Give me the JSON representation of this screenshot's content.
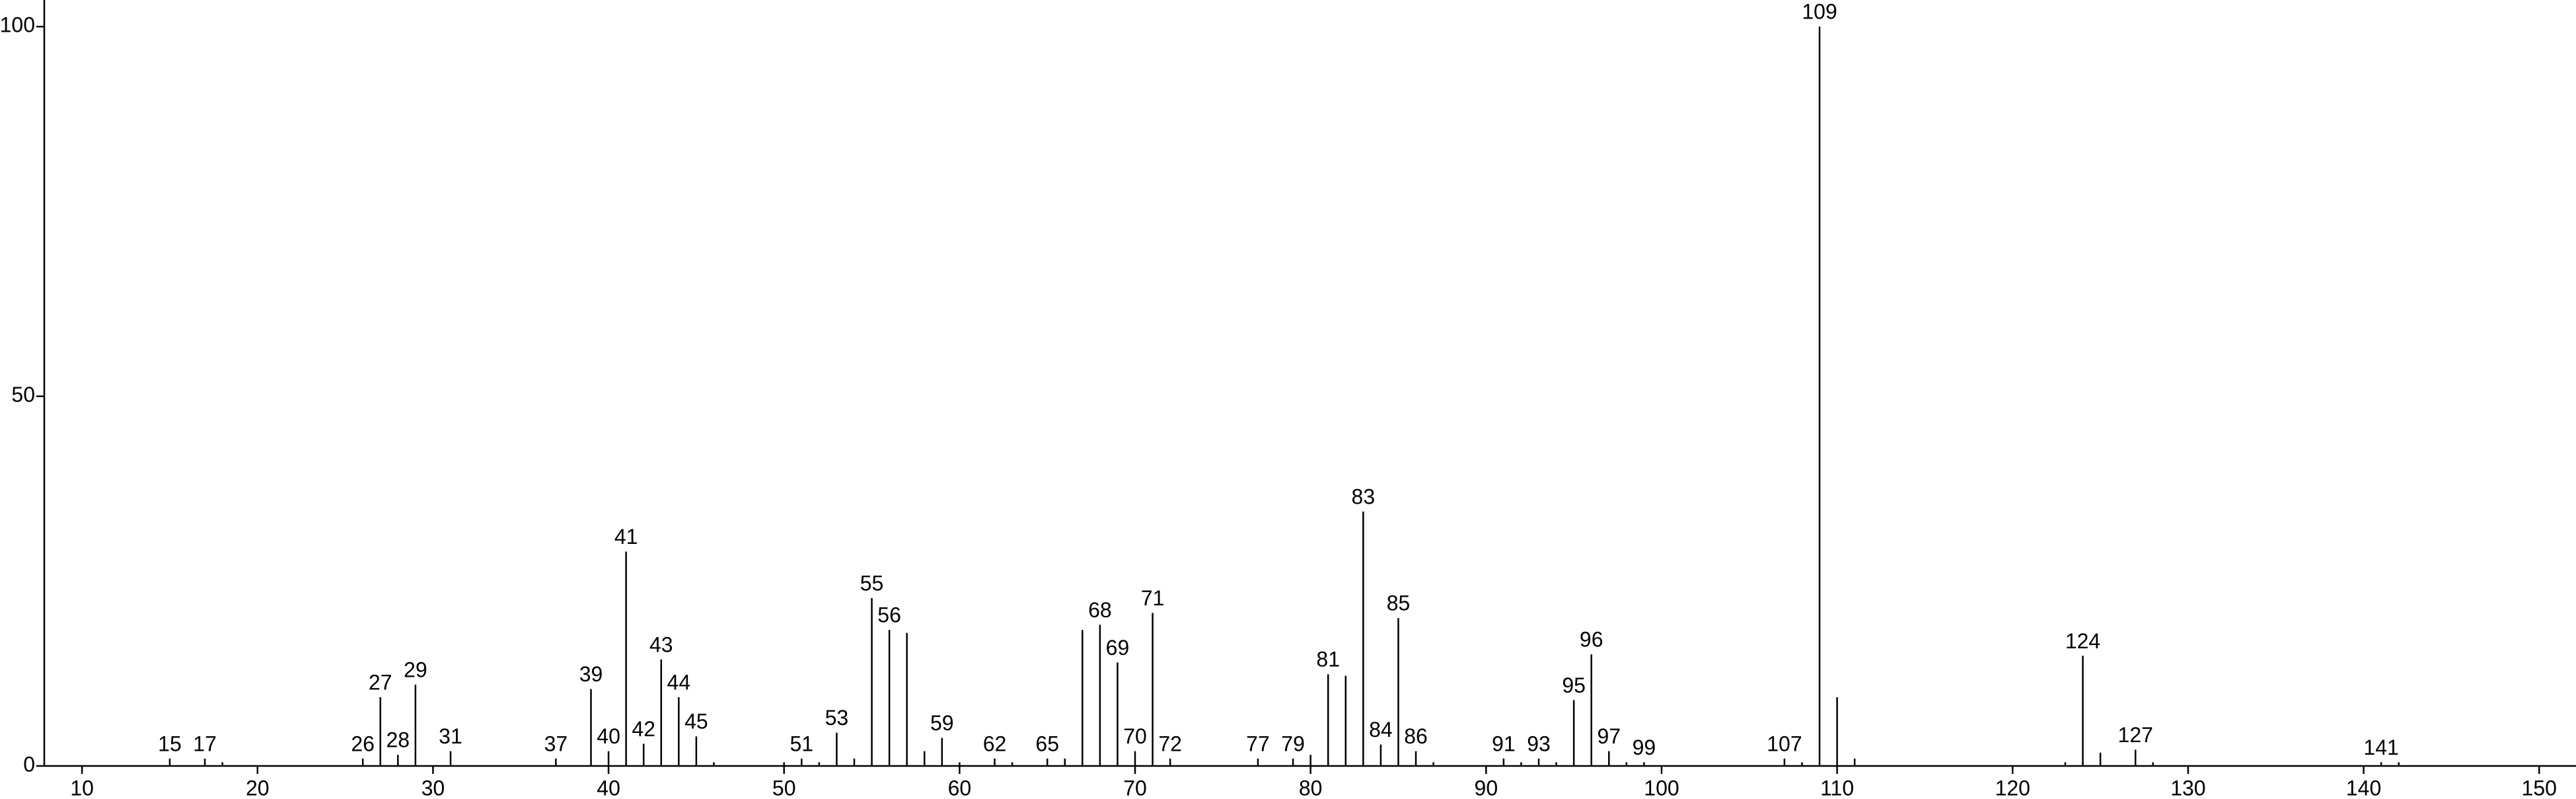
{
  "chart_data": {
    "type": "stick",
    "x": [
      15,
      17,
      18,
      26,
      27,
      28,
      29,
      31,
      37,
      39,
      40,
      41,
      42,
      43,
      44,
      45,
      46,
      50,
      51,
      52,
      53,
      54,
      55,
      56,
      57,
      58,
      59,
      60,
      62,
      63,
      65,
      66,
      67,
      68,
      69,
      70,
      71,
      72,
      77,
      79,
      80,
      81,
      82,
      83,
      84,
      85,
      86,
      87,
      91,
      92,
      93,
      94,
      95,
      96,
      97,
      98,
      99,
      107,
      108,
      109,
      110,
      111,
      123,
      124,
      125,
      127,
      128,
      141,
      142
    ],
    "values": [
      1,
      1,
      0.5,
      1,
      9.3,
      1.5,
      11,
      2,
      1,
      10.4,
      2,
      29,
      3,
      14.4,
      9.3,
      4,
      0.5,
      0.5,
      1,
      0.5,
      4.5,
      1,
      22.7,
      18.4,
      18,
      2,
      3.8,
      0.5,
      1,
      0.5,
      1,
      1,
      18.4,
      19.1,
      14,
      2,
      20.7,
      1,
      1,
      1,
      1.5,
      12.4,
      12.2,
      34.4,
      2.9,
      20,
      2,
      0.5,
      1,
      0.5,
      1,
      0.5,
      8.9,
      15.1,
      2,
      0.5,
      0.5,
      1,
      0.5,
      100,
      9.3,
      1,
      0.5,
      14.9,
      1.8,
      2.2,
      0.5,
      0.5,
      0.5
    ],
    "peak_labels": [
      15,
      17,
      null,
      26,
      27,
      28,
      29,
      31,
      37,
      39,
      40,
      41,
      42,
      43,
      44,
      45,
      null,
      null,
      51,
      null,
      53,
      null,
      55,
      56,
      null,
      null,
      59,
      null,
      62,
      null,
      65,
      null,
      null,
      68,
      69,
      70,
      71,
      72,
      77,
      79,
      null,
      81,
      null,
      83,
      84,
      85,
      86,
      null,
      91,
      null,
      93,
      null,
      95,
      96,
      97,
      null,
      99,
      107,
      null,
      109,
      null,
      null,
      null,
      124,
      null,
      127,
      null,
      141,
      null
    ],
    "color": "#000000",
    "xlim": [
      7.85,
      152.1
    ],
    "xticks": [
      10,
      20,
      30,
      40,
      50,
      60,
      70,
      80,
      90,
      100,
      110,
      120,
      130,
      140,
      150
    ],
    "ylim": [
      0,
      103.6
    ],
    "yticks": [
      0,
      50,
      100
    ]
  }
}
